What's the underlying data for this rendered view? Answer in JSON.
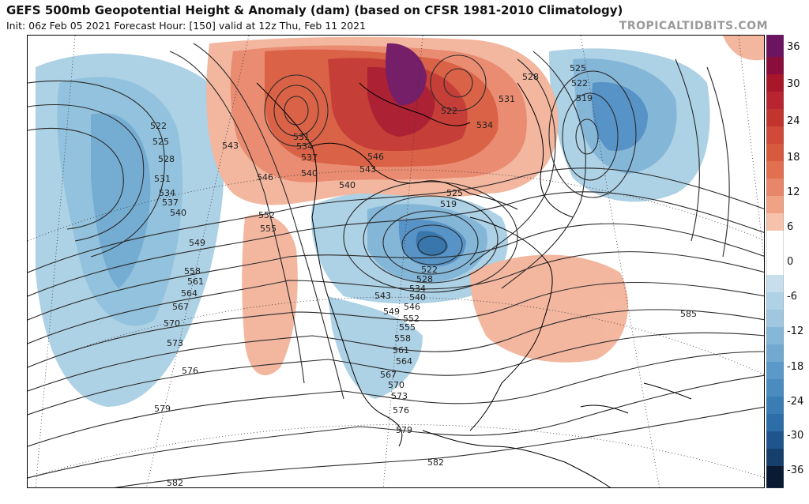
{
  "header": {
    "title": "GEFS 500mb Geopotential Height & Anomaly (dam) (based on CFSR 1981-2010 Climatology)",
    "subtitle": "Init: 06z Feb 05 2021   Forecast Hour: [150]   valid at 12z Thu, Feb 11 2021",
    "watermark": "TROPICALTIDBITS.COM"
  },
  "colorbar": {
    "labels": [
      "36",
      "30",
      "24",
      "18",
      "12",
      "6",
      "0",
      "-6",
      "-12",
      "-18",
      "-24",
      "-30",
      "-36"
    ],
    "colors": [
      "#3a0a3a",
      "#6d1460",
      "#8a0e3c",
      "#a8162a",
      "#c2352e",
      "#d85a3e",
      "#e8866a",
      "#f3b39a",
      "#fadacc",
      "#ffffff",
      "#ffffff",
      "#c7dfec",
      "#9fc7e0",
      "#72a9d1",
      "#4a8cc0",
      "#2d6ea8",
      "#1f558c",
      "#163f6e",
      "#0f2c50",
      "#0a1a33"
    ]
  },
  "contour_labels": [
    "522",
    "525",
    "528",
    "531",
    "534",
    "537",
    "540",
    "543",
    "546",
    "549",
    "552",
    "555",
    "558",
    "561",
    "564",
    "567",
    "570",
    "573",
    "576",
    "579",
    "582",
    "585",
    "519"
  ],
  "map_labels": [
    {
      "t": "522"
    },
    {
      "t": "525"
    },
    {
      "t": "528"
    },
    {
      "t": "531"
    },
    {
      "t": "534"
    },
    {
      "t": "537"
    },
    {
      "t": "540"
    },
    {
      "t": "549"
    },
    {
      "t": "558"
    },
    {
      "t": "561"
    },
    {
      "t": "564"
    },
    {
      "t": "567"
    },
    {
      "t": "570"
    },
    {
      "t": "573"
    },
    {
      "t": "576"
    },
    {
      "t": "579"
    },
    {
      "t": "582"
    },
    {
      "t": "543"
    },
    {
      "t": "546"
    },
    {
      "t": "552"
    },
    {
      "t": "555"
    },
    {
      "t": "531"
    },
    {
      "t": "534"
    },
    {
      "t": "537"
    },
    {
      "t": "540"
    },
    {
      "t": "540"
    },
    {
      "t": "543"
    },
    {
      "t": "546"
    },
    {
      "t": "522"
    },
    {
      "t": "528"
    },
    {
      "t": "531"
    },
    {
      "t": "534"
    },
    {
      "t": "525"
    },
    {
      "t": "522"
    },
    {
      "t": "519"
    },
    {
      "t": "525"
    },
    {
      "t": "519"
    },
    {
      "t": "522"
    },
    {
      "t": "528"
    },
    {
      "t": "534"
    },
    {
      "t": "540"
    },
    {
      "t": "543"
    },
    {
      "t": "549"
    },
    {
      "t": "546"
    },
    {
      "t": "552"
    },
    {
      "t": "555"
    },
    {
      "t": "558"
    },
    {
      "t": "561"
    },
    {
      "t": "564"
    },
    {
      "t": "567"
    },
    {
      "t": "570"
    },
    {
      "t": "573"
    },
    {
      "t": "576"
    },
    {
      "t": "579"
    },
    {
      "t": "582"
    },
    {
      "t": "585"
    }
  ]
}
